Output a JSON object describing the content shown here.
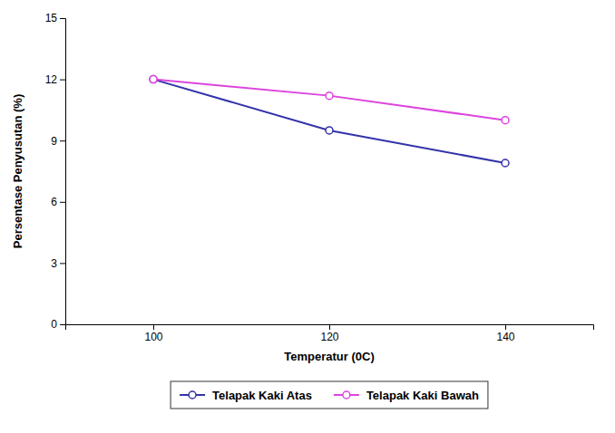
{
  "chart_data": {
    "type": "line",
    "x": [
      100,
      120,
      140
    ],
    "series": [
      {
        "name": "Telapak Kaki Atas",
        "color": "#3333aa",
        "values": [
          12.0,
          9.5,
          7.9
        ]
      },
      {
        "name": "Telapak Kaki Bawah",
        "color": "#dd44dd",
        "values": [
          12.0,
          11.2,
          10.0
        ]
      }
    ],
    "xlabel": "Temperatur (0C)",
    "ylabel": "Persentase Penyusutan (%)",
    "xlim": [
      90,
      150
    ],
    "xticks": [
      100,
      120,
      140
    ],
    "ylim": [
      0,
      15
    ],
    "yticks": [
      0,
      3,
      6,
      9,
      12,
      15
    ],
    "marker": "circle",
    "grid": false,
    "legend": "bottom"
  }
}
